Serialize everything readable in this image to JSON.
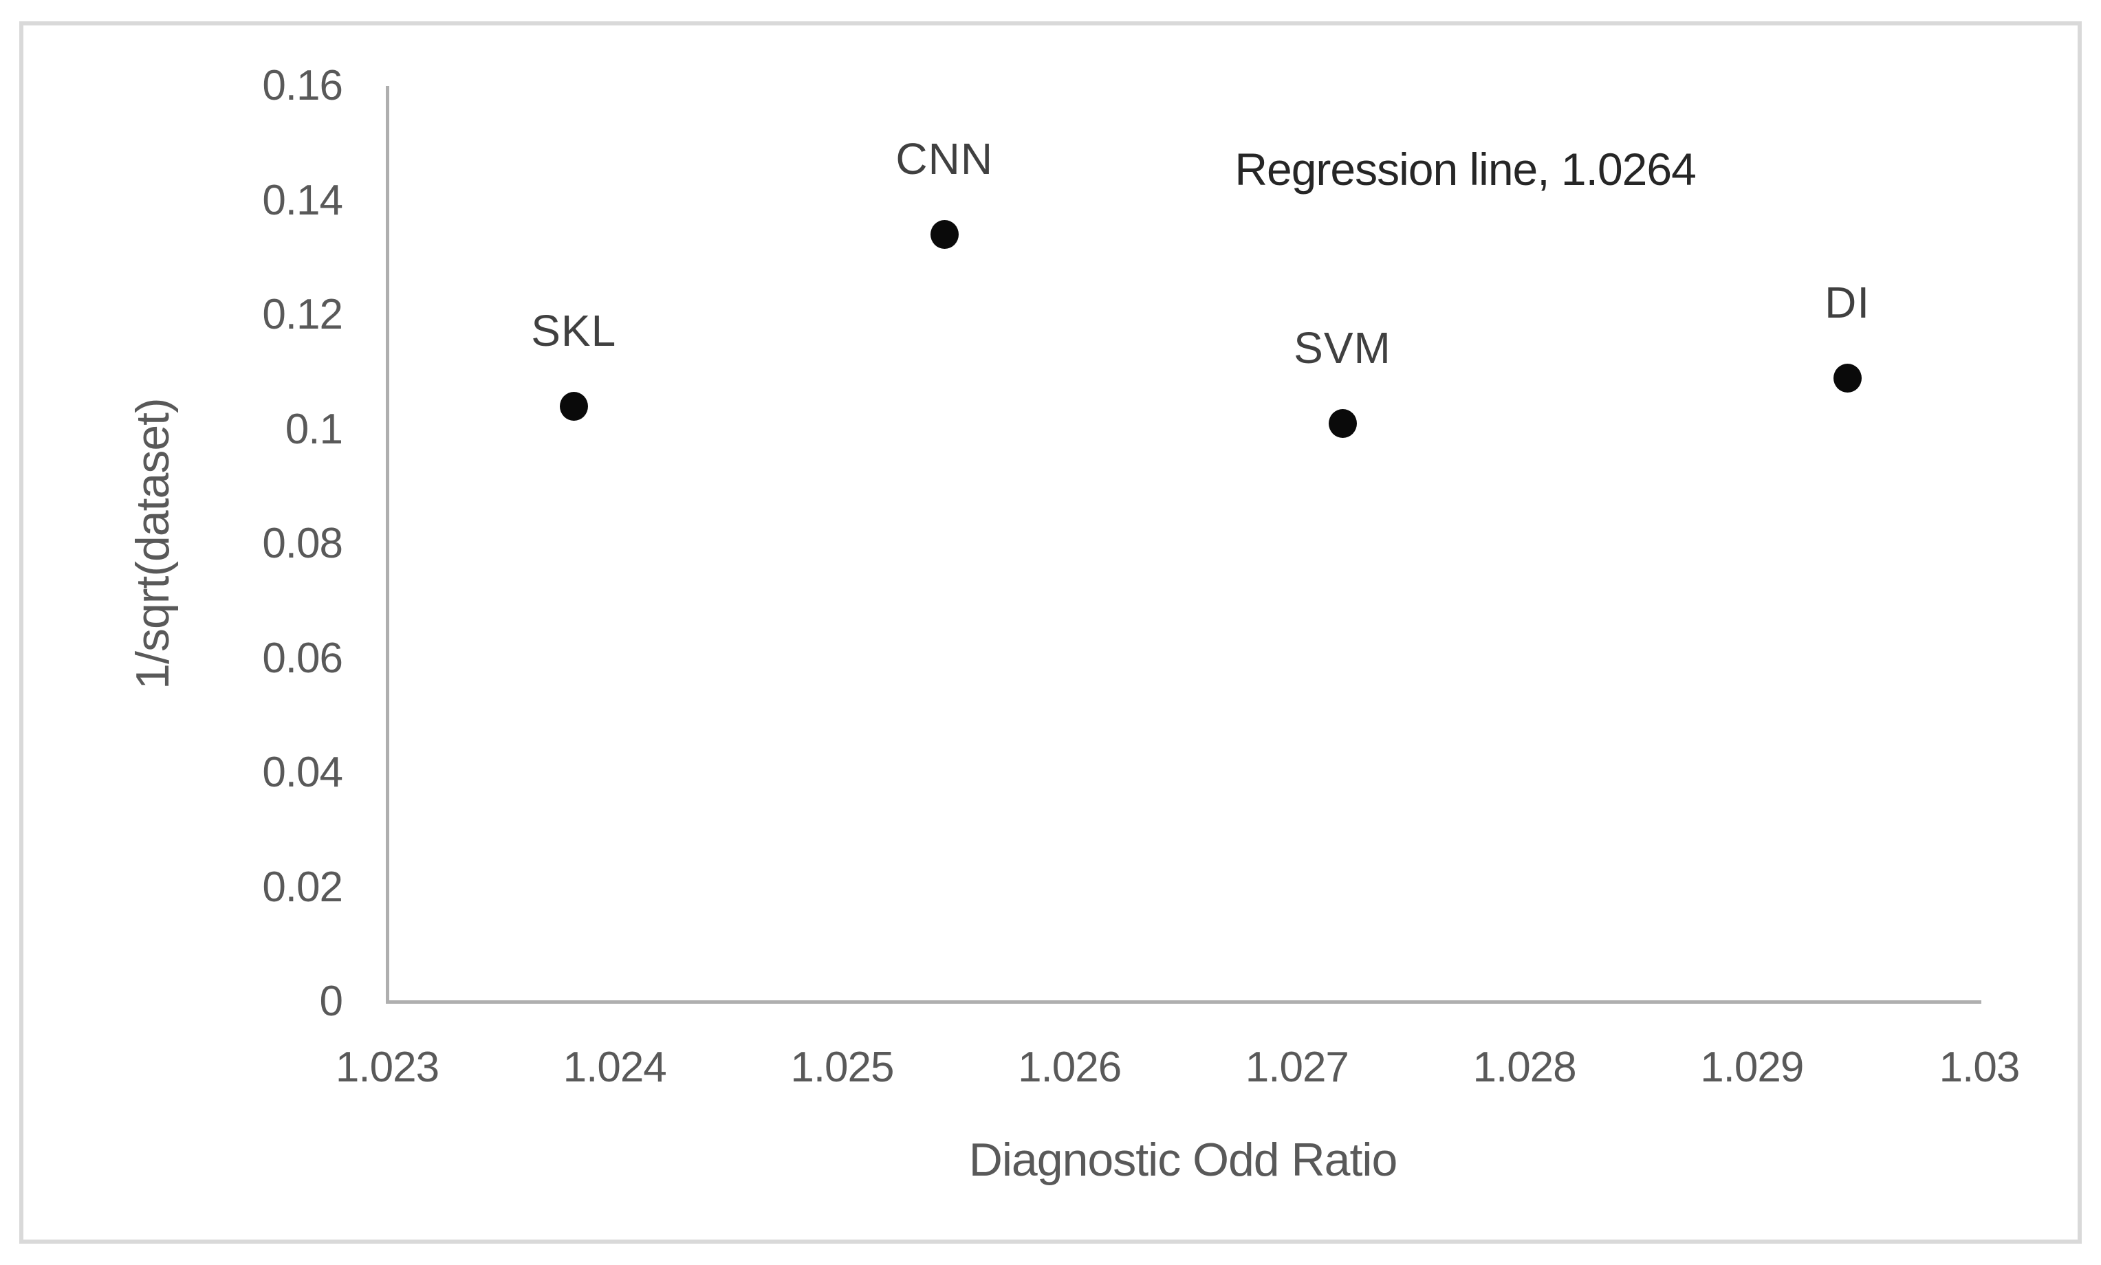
{
  "chart_data": {
    "type": "scatter",
    "title": "",
    "xlabel": "Diagnostic Odd Ratio",
    "ylabel": "1/sqrt(dataset)",
    "xlim": [
      1.023,
      1.03
    ],
    "ylim": [
      0,
      0.16
    ],
    "x_tick_labels": [
      "1.023",
      "1.024",
      "1.025",
      "1.026",
      "1.027",
      "1.028",
      "1.029",
      "1.03"
    ],
    "y_tick_labels": [
      "0",
      "0.02",
      "0.04",
      "0.06",
      "0.08",
      "0.1",
      "0.12",
      "0.14",
      "0.16"
    ],
    "grid": false,
    "legend": false,
    "points": [
      {
        "label": "SKL",
        "x": 1.02382,
        "y": 0.104
      },
      {
        "label": "CNN",
        "x": 1.02545,
        "y": 0.134
      },
      {
        "label": "SVM",
        "x": 1.0272,
        "y": 0.101
      },
      {
        "label": "DI",
        "x": 1.02942,
        "y": 0.109
      }
    ],
    "annotation": {
      "text": "Regression line, 1.0264",
      "x": 1.02774,
      "y": 0.1455
    },
    "marker_color": "#0a0a0a"
  },
  "colors": {
    "frame_border": "#d9d9d9",
    "axis_line": "#afafaf",
    "tick_text": "#595959",
    "point_label_text": "#404040",
    "annotation_text": "#262626",
    "background": "#ffffff"
  }
}
